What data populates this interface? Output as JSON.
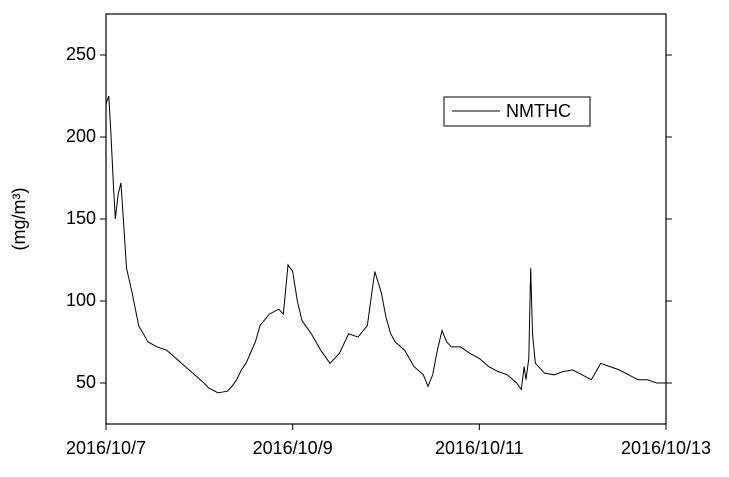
{
  "chart_data": {
    "type": "line",
    "y_label": "(mg/m³)",
    "x": [
      0,
      0.03,
      0.05,
      0.08,
      0.1,
      0.13,
      0.16,
      0.18,
      0.22,
      0.28,
      0.35,
      0.45,
      0.55,
      0.65,
      0.75,
      0.85,
      0.95,
      1.05,
      1.1,
      1.2,
      1.3,
      1.35,
      1.4,
      1.45,
      1.5,
      1.6,
      1.65,
      1.75,
      1.85,
      1.9,
      1.95,
      2.0,
      2.05,
      2.1,
      2.2,
      2.3,
      2.4,
      2.5,
      2.6,
      2.7,
      2.8,
      2.88,
      2.95,
      3.0,
      3.05,
      3.1,
      3.2,
      3.3,
      3.4,
      3.45,
      3.5,
      3.55,
      3.6,
      3.65,
      3.7,
      3.8,
      3.9,
      4.0,
      4.1,
      4.2,
      4.3,
      4.4,
      4.45,
      4.48,
      4.5,
      4.53,
      4.55,
      4.57,
      4.6,
      4.7,
      4.8,
      4.9,
      5.0,
      5.1,
      5.2,
      5.3,
      5.4,
      5.5,
      5.6,
      5.7,
      5.8,
      5.9,
      6.0
    ],
    "series": [
      {
        "name": "NMTHC",
        "color": "#000000",
        "values": [
          220,
          225,
          205,
          170,
          150,
          165,
          172,
          155,
          120,
          105,
          85,
          75,
          72,
          70,
          65,
          60,
          55,
          50,
          47,
          44,
          45,
          48,
          52,
          58,
          62,
          75,
          85,
          92,
          95,
          92,
          122,
          118,
          100,
          88,
          80,
          70,
          62,
          68,
          80,
          78,
          85,
          118,
          105,
          90,
          80,
          75,
          70,
          60,
          55,
          48,
          55,
          70,
          82,
          75,
          72,
          72,
          68,
          65,
          60,
          57,
          55,
          50,
          46,
          60,
          52,
          65,
          120,
          80,
          62,
          56,
          55,
          57,
          58,
          55,
          52,
          62,
          60,
          58,
          55,
          52,
          52,
          50,
          50
        ]
      }
    ],
    "xlim": [
      0,
      6
    ],
    "xticks": [
      {
        "value": 0,
        "label": "2016/10/7"
      },
      {
        "value": 2,
        "label": "2016/10/9"
      },
      {
        "value": 4,
        "label": "2016/10/11"
      },
      {
        "value": 6,
        "label": "2016/10/13"
      }
    ],
    "ylim": [
      25,
      275
    ],
    "yticks": [
      50,
      100,
      150,
      200,
      250
    ],
    "legend": "upper right"
  }
}
